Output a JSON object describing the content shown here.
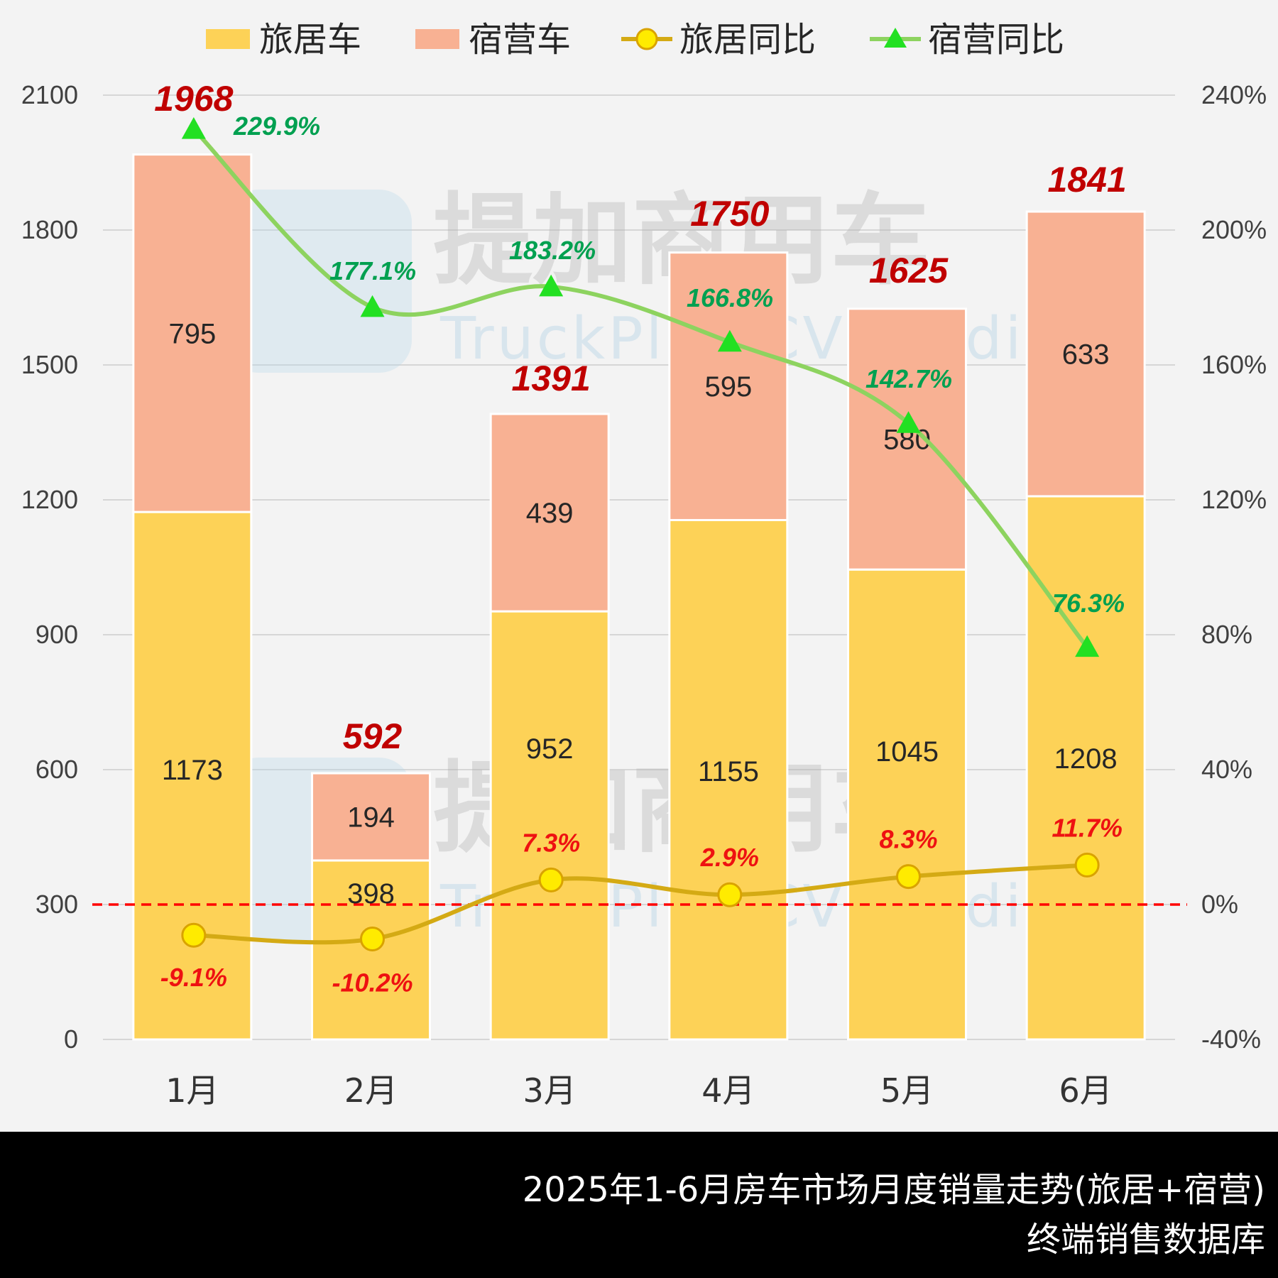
{
  "chart_data": {
    "type": "bar",
    "stacked": true,
    "categories": [
      "1月",
      "2月",
      "3月",
      "4月",
      "5月",
      "6月"
    ],
    "series": [
      {
        "name": "旅居车",
        "axis": "left",
        "type": "bar",
        "values": [
          1173,
          398,
          952,
          1155,
          1045,
          1208
        ],
        "color": "#fdd257"
      },
      {
        "name": "宿营车",
        "axis": "left",
        "type": "bar",
        "values": [
          795,
          194,
          439,
          595,
          580,
          633
        ],
        "color": "#f8b193"
      },
      {
        "name": "旅居同比",
        "axis": "right",
        "type": "line",
        "unit": "%",
        "values": [
          -9.1,
          -10.2,
          7.3,
          2.9,
          8.3,
          11.7
        ],
        "color": "#d4aa14",
        "marker": "circle",
        "marker_color": "#ffeb00"
      },
      {
        "name": "宿营同比",
        "axis": "right",
        "type": "line",
        "unit": "%",
        "values": [
          229.9,
          177.1,
          183.2,
          166.8,
          142.7,
          76.3
        ],
        "color": "#8dd35f",
        "marker": "triangle",
        "marker_color": "#22e022"
      }
    ],
    "totals": [
      1968,
      592,
      1391,
      1750,
      1625,
      1841
    ],
    "total_labels": [
      "1968",
      "592",
      "1391",
      "1750",
      "1625",
      "1841"
    ],
    "y_left": {
      "ylim": [
        0,
        2100
      ],
      "ticks": [
        0,
        300,
        600,
        900,
        1200,
        1500,
        1800,
        2100
      ],
      "tick_labels": [
        "0",
        "300",
        "600",
        "900",
        "1200",
        "1500",
        "1800",
        "2100"
      ]
    },
    "y_right": {
      "ylim": [
        -40,
        240
      ],
      "ticks": [
        -40,
        0,
        40,
        80,
        120,
        160,
        200,
        240
      ],
      "tick_labels": [
        "-40%",
        "0%",
        "40%",
        "80%",
        "120%",
        "160%",
        "200%",
        "240%"
      ]
    },
    "reference_line": {
      "value": 0,
      "axis": "right",
      "style": "dashed",
      "color": "#ff0000"
    },
    "pct_labels_lux": [
      "-9.1%",
      "-10.2%",
      "7.3%",
      "2.9%",
      "8.3%",
      "11.7%"
    ],
    "pct_labels_camp": [
      "229.9%",
      "177.1%",
      "183.2%",
      "166.8%",
      "142.7%",
      "76.3%"
    ],
    "grid": true,
    "legend_position": "top"
  },
  "watermark": {
    "cn": "提加商用车",
    "en": "TruckPlus CV studio",
    "logo": "tb"
  },
  "footer": {
    "title": "2025年1-6月房车市场月度销量走势(旅居+宿营)",
    "subtitle": "终端销售数据库"
  }
}
